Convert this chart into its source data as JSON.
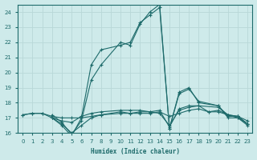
{
  "xlabel": "Humidex (Indice chaleur)",
  "xlim": [
    -0.5,
    23.5
  ],
  "ylim": [
    16,
    24.5
  ],
  "xticks": [
    0,
    1,
    2,
    3,
    4,
    5,
    6,
    7,
    8,
    9,
    10,
    11,
    12,
    13,
    14,
    15,
    16,
    17,
    18,
    19,
    20,
    21,
    22,
    23
  ],
  "yticks": [
    16,
    17,
    18,
    19,
    20,
    21,
    22,
    23,
    24
  ],
  "background_color": "#ceeaea",
  "line_color": "#1e6b6b",
  "grid_color": "#b8d8d8",
  "lines": [
    {
      "x": [
        0,
        1,
        2,
        3,
        4,
        5,
        6,
        7,
        8,
        10,
        11,
        12,
        13,
        14,
        15,
        16,
        17,
        18,
        19,
        20,
        21,
        22,
        23
      ],
      "y": [
        17.2,
        17.3,
        17.3,
        17.1,
        17.0,
        17.0,
        17.0,
        17.1,
        17.2,
        17.3,
        17.3,
        17.3,
        17.3,
        17.4,
        17.1,
        17.3,
        17.5,
        17.6,
        17.4,
        17.4,
        17.2,
        17.1,
        16.8
      ]
    },
    {
      "x": [
        0,
        1,
        2,
        3,
        4,
        5,
        6,
        7,
        8,
        10,
        11,
        12,
        13,
        14,
        15,
        16,
        17,
        18,
        19,
        20,
        21,
        22,
        23
      ],
      "y": [
        17.2,
        17.3,
        17.3,
        17.0,
        16.8,
        16.7,
        17.1,
        17.3,
        17.4,
        17.5,
        17.5,
        17.5,
        17.4,
        17.3,
        16.5,
        17.5,
        17.7,
        17.8,
        17.4,
        17.5,
        17.2,
        17.0,
        16.6
      ]
    },
    {
      "x": [
        3,
        4,
        5,
        6,
        7,
        8,
        10,
        11,
        12,
        13,
        14,
        15,
        16,
        17,
        18,
        20,
        21,
        22,
        23
      ],
      "y": [
        17.0,
        16.6,
        16.0,
        16.5,
        17.0,
        17.2,
        17.4,
        17.3,
        17.4,
        17.4,
        17.5,
        16.4,
        17.6,
        17.8,
        17.8,
        17.7,
        17.2,
        17.1,
        16.6
      ]
    },
    {
      "x": [
        3,
        4,
        5,
        6,
        7,
        8,
        10,
        11,
        12,
        13,
        14,
        15,
        16,
        17,
        18,
        20,
        21,
        22,
        23
      ],
      "y": [
        17.2,
        16.7,
        15.9,
        16.8,
        19.5,
        20.5,
        22.0,
        21.8,
        23.2,
        24.0,
        24.5,
        16.3,
        18.7,
        19.0,
        18.0,
        17.8,
        17.1,
        17.1,
        16.6
      ]
    },
    {
      "x": [
        3,
        4,
        5,
        6,
        7,
        8,
        10,
        11,
        12,
        13,
        14,
        15,
        16,
        17,
        18,
        20,
        21,
        22,
        23
      ],
      "y": [
        17.0,
        16.5,
        15.8,
        17.0,
        20.5,
        21.5,
        21.8,
        22.0,
        23.3,
        23.8,
        24.3,
        16.3,
        18.6,
        18.9,
        18.1,
        17.8,
        17.0,
        17.0,
        16.5
      ]
    }
  ]
}
